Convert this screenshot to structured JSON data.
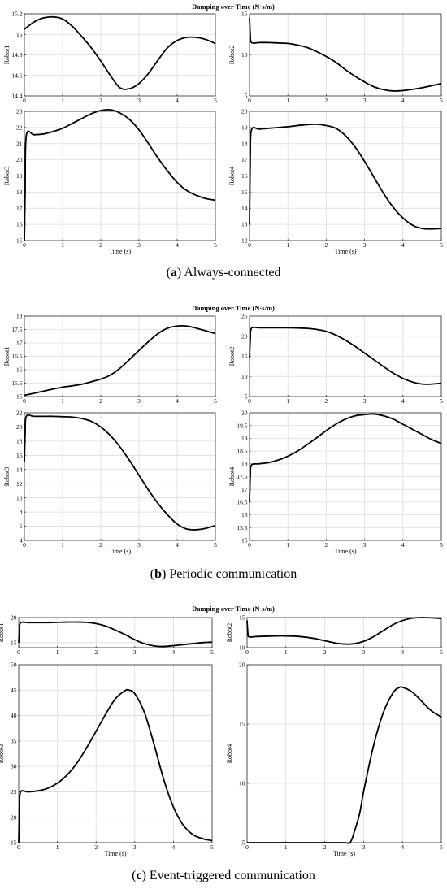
{
  "figures": [
    {
      "title": "Damping over Time (N·s/m)",
      "caption_letter": "(a)",
      "caption_text": "Always-connected"
    },
    {
      "title": "Damping over Time (N·s/m)",
      "caption_letter": "(b)",
      "caption_text": "Periodic communication"
    },
    {
      "title": "Damping over Time (N·s/m)",
      "caption_letter": "(c)",
      "caption_text": "Event-triggered communication"
    }
  ],
  "chart_data": [
    {
      "type": "line",
      "figure": 0,
      "ylabel": "Robot1",
      "xlabel": "",
      "xlim": [
        0,
        5
      ],
      "ylim": [
        14.4,
        15.2
      ],
      "yticks": [
        14.4,
        14.6,
        14.8,
        15,
        15.2
      ],
      "ytick_labels": [
        "14.4",
        "14.6",
        "14.8",
        "15",
        "15.2"
      ],
      "xticks": [
        0,
        1,
        2,
        3,
        4,
        5
      ],
      "x": [
        0,
        0.25,
        0.5,
        0.75,
        1,
        1.25,
        1.5,
        1.75,
        2,
        2.25,
        2.5,
        2.75,
        3,
        3.25,
        3.5,
        3.75,
        4,
        4.25,
        4.5,
        4.75,
        5
      ],
      "y": [
        15.05,
        15.12,
        15.16,
        15.17,
        15.15,
        15.08,
        14.98,
        14.87,
        14.74,
        14.6,
        14.48,
        14.47,
        14.52,
        14.62,
        14.75,
        14.87,
        14.94,
        14.97,
        14.97,
        14.95,
        14.91
      ]
    },
    {
      "type": "line",
      "figure": 0,
      "ylabel": "Robot2",
      "xlabel": "",
      "xlim": [
        0,
        5
      ],
      "ylim": [
        5,
        15
      ],
      "yticks": [
        5,
        10,
        15
      ],
      "ytick_labels": [
        "5",
        "10",
        "15"
      ],
      "xticks": [
        0,
        1,
        2,
        3,
        4,
        5
      ],
      "x": [
        0,
        0.02,
        0.05,
        0.25,
        0.5,
        0.75,
        1,
        1.25,
        1.5,
        1.75,
        2,
        2.25,
        2.5,
        2.75,
        3,
        3.25,
        3.5,
        3.75,
        4,
        4.25,
        4.5,
        4.75,
        5
      ],
      "y": [
        14.5,
        12.5,
        11.5,
        11.5,
        11.5,
        11.45,
        11.4,
        11.2,
        10.9,
        10.4,
        9.8,
        9.1,
        8.2,
        7.4,
        6.7,
        6.1,
        5.75,
        5.6,
        5.65,
        5.8,
        6,
        6.25,
        6.5
      ]
    },
    {
      "type": "line",
      "figure": 0,
      "ylabel": "Robot3",
      "xlabel": "Time (s)",
      "xlim": [
        0,
        5
      ],
      "ylim": [
        15,
        23
      ],
      "yticks": [
        15,
        16,
        17,
        18,
        19,
        20,
        21,
        22,
        23
      ],
      "ytick_labels": [
        "15",
        "16",
        "17",
        "18",
        "19",
        "20",
        "21",
        "22",
        "23"
      ],
      "xticks": [
        0,
        1,
        2,
        3,
        4,
        5
      ],
      "x": [
        0,
        0.02,
        0.05,
        0.25,
        0.5,
        0.75,
        1,
        1.25,
        1.5,
        1.75,
        2,
        2.25,
        2.5,
        2.75,
        3,
        3.25,
        3.5,
        3.75,
        4,
        4.25,
        4.5,
        4.75,
        5
      ],
      "y": [
        15,
        18,
        21.5,
        21.55,
        21.6,
        21.75,
        21.95,
        22.25,
        22.55,
        22.85,
        23.05,
        23.1,
        22.9,
        22.5,
        21.85,
        21,
        20.1,
        19.3,
        18.6,
        18.1,
        17.8,
        17.6,
        17.5
      ]
    },
    {
      "type": "line",
      "figure": 0,
      "ylabel": "Robot4",
      "xlabel": "Time (s)",
      "xlim": [
        0,
        5
      ],
      "ylim": [
        12,
        20
      ],
      "yticks": [
        12,
        13,
        14,
        15,
        16,
        17,
        18,
        19,
        20
      ],
      "ytick_labels": [
        "12",
        "13",
        "14",
        "15",
        "16",
        "17",
        "18",
        "19",
        "20"
      ],
      "xticks": [
        0,
        1,
        2,
        3,
        4,
        5
      ],
      "x": [
        0,
        0.02,
        0.05,
        0.25,
        0.5,
        0.75,
        1,
        1.25,
        1.5,
        1.75,
        2,
        2.25,
        2.5,
        2.75,
        3,
        3.25,
        3.5,
        3.75,
        4,
        4.25,
        4.5,
        4.75,
        5
      ],
      "y": [
        13,
        17,
        18.85,
        18.9,
        18.95,
        19,
        19.05,
        19.12,
        19.18,
        19.2,
        19.12,
        18.95,
        18.5,
        17.8,
        16.9,
        15.9,
        14.9,
        14.05,
        13.4,
        12.95,
        12.75,
        12.72,
        12.75
      ]
    },
    {
      "type": "line",
      "figure": 1,
      "ylabel": "Robot1",
      "xlabel": "",
      "xlim": [
        0,
        5
      ],
      "ylim": [
        15,
        18
      ],
      "yticks": [
        15,
        15.5,
        16,
        16.5,
        17,
        17.5,
        18
      ],
      "ytick_labels": [
        "15",
        "15.5",
        "16",
        "16.5",
        "17",
        "17.5",
        "18"
      ],
      "xticks": [
        0,
        1,
        2,
        3,
        4,
        5
      ],
      "x": [
        0,
        0.25,
        0.5,
        0.75,
        1,
        1.25,
        1.5,
        1.75,
        2,
        2.25,
        2.5,
        2.75,
        3,
        3.25,
        3.5,
        3.75,
        4,
        4.25,
        4.5,
        4.75,
        5
      ],
      "y": [
        15.05,
        15.12,
        15.2,
        15.28,
        15.35,
        15.4,
        15.46,
        15.55,
        15.65,
        15.8,
        16.05,
        16.38,
        16.72,
        17.05,
        17.35,
        17.55,
        17.63,
        17.63,
        17.55,
        17.45,
        17.35
      ]
    },
    {
      "type": "line",
      "figure": 1,
      "ylabel": "Robot2",
      "xlabel": "",
      "xlim": [
        0,
        5
      ],
      "ylim": [
        5,
        25
      ],
      "yticks": [
        5,
        10,
        15,
        20,
        25
      ],
      "ytick_labels": [
        "5",
        "10",
        "15",
        "20",
        "25"
      ],
      "xticks": [
        0,
        1,
        2,
        3,
        4,
        5
      ],
      "x": [
        0,
        0.02,
        0.05,
        0.25,
        0.5,
        0.75,
        1,
        1.25,
        1.5,
        1.75,
        2,
        2.25,
        2.5,
        2.75,
        3,
        3.25,
        3.5,
        3.75,
        4,
        4.25,
        4.5,
        4.75,
        5
      ],
      "y": [
        14.5,
        19,
        22,
        22.1,
        22.1,
        22.1,
        22.1,
        22.05,
        21.95,
        21.7,
        21.2,
        20.3,
        19,
        17.5,
        15.8,
        14.1,
        12.4,
        10.8,
        9.5,
        8.6,
        8.1,
        8.1,
        8.3
      ]
    },
    {
      "type": "line",
      "figure": 1,
      "ylabel": "Robot3",
      "xlabel": "Time (s)",
      "xlim": [
        0,
        5
      ],
      "ylim": [
        4,
        22
      ],
      "yticks": [
        4,
        6,
        8,
        10,
        12,
        14,
        16,
        18,
        20,
        22
      ],
      "ytick_labels": [
        "4",
        "6",
        "8",
        "10",
        "12",
        "14",
        "16",
        "18",
        "20",
        "22"
      ],
      "xticks": [
        0,
        1,
        2,
        3,
        4,
        5
      ],
      "x": [
        0,
        0.02,
        0.05,
        0.25,
        0.5,
        0.75,
        1,
        1.25,
        1.5,
        1.75,
        2,
        2.25,
        2.5,
        2.75,
        3,
        3.25,
        3.5,
        3.75,
        4,
        4.25,
        4.5,
        4.75,
        5
      ],
      "y": [
        15,
        19,
        21.5,
        21.5,
        21.5,
        21.5,
        21.45,
        21.4,
        21.2,
        20.8,
        20,
        18.8,
        17.2,
        15.3,
        13.2,
        11.1,
        9.2,
        7.6,
        6.3,
        5.6,
        5.5,
        5.7,
        6.1
      ]
    },
    {
      "type": "line",
      "figure": 1,
      "ylabel": "Robot4",
      "xlabel": "Time (s)",
      "xlim": [
        0,
        5
      ],
      "ylim": [
        15,
        20
      ],
      "yticks": [
        15,
        15.5,
        16,
        16.5,
        17,
        17.5,
        18,
        18.5,
        19,
        19.5,
        20
      ],
      "ytick_labels": [
        "15",
        "15.5",
        "16",
        "16.5",
        "17",
        "17.5",
        "18",
        "18.5",
        "19",
        "19.5",
        "20"
      ],
      "xticks": [
        0,
        1,
        2,
        3,
        4,
        5
      ],
      "x": [
        0,
        0.02,
        0.05,
        0.25,
        0.5,
        0.75,
        1,
        1.25,
        1.5,
        1.75,
        2,
        2.25,
        2.5,
        2.75,
        3,
        3.25,
        3.5,
        3.75,
        4,
        4.25,
        4.5,
        4.75,
        5
      ],
      "y": [
        16.5,
        17.5,
        17.95,
        18,
        18.05,
        18.15,
        18.3,
        18.5,
        18.75,
        19.02,
        19.3,
        19.55,
        19.75,
        19.88,
        19.93,
        19.95,
        19.88,
        19.75,
        19.55,
        19.35,
        19.15,
        18.95,
        18.8
      ]
    },
    {
      "type": "line",
      "figure": 2,
      "ylabel": "Robot1",
      "xlabel": "",
      "xlim": [
        0,
        5
      ],
      "ylim": [
        14,
        20
      ],
      "yticks": [
        15,
        20
      ],
      "ytick_labels": [
        "15",
        "20"
      ],
      "xticks": [
        0,
        1,
        2,
        3,
        4,
        5
      ],
      "x": [
        0,
        0.02,
        0.05,
        0.25,
        0.5,
        0.75,
        1,
        1.25,
        1.5,
        1.75,
        2,
        2.25,
        2.5,
        2.75,
        3,
        3.25,
        3.5,
        3.75,
        4,
        4.25,
        4.5,
        4.75,
        5
      ],
      "y": [
        15,
        17.5,
        19,
        19,
        19,
        19,
        19.05,
        19.1,
        19.1,
        19.05,
        18.8,
        18.3,
        17.5,
        16.6,
        15.6,
        14.8,
        14.35,
        14.25,
        14.4,
        14.6,
        14.8,
        15,
        15.1
      ]
    },
    {
      "type": "line",
      "figure": 2,
      "ylabel": "Robot2",
      "xlabel": "",
      "xlim": [
        0,
        5
      ],
      "ylim": [
        10,
        15
      ],
      "yticks": [
        10,
        15
      ],
      "ytick_labels": [
        "10",
        "15"
      ],
      "xticks": [
        0,
        1,
        2,
        3,
        4,
        5
      ],
      "x": [
        0,
        0.02,
        0.05,
        0.25,
        0.5,
        0.75,
        1,
        1.25,
        1.5,
        1.75,
        2,
        2.25,
        2.5,
        2.75,
        3,
        3.25,
        3.5,
        3.75,
        4,
        4.25,
        4.5,
        4.75,
        5
      ],
      "y": [
        14.5,
        12.5,
        11.8,
        11.85,
        11.9,
        11.95,
        11.95,
        11.9,
        11.75,
        11.5,
        11.15,
        10.8,
        10.6,
        10.65,
        11.05,
        11.8,
        12.8,
        13.8,
        14.5,
        14.9,
        15,
        14.95,
        14.85
      ]
    },
    {
      "type": "line",
      "figure": 2,
      "ylabel": "Robot3",
      "xlabel": "Time (s)",
      "xlim": [
        0,
        5
      ],
      "ylim": [
        15,
        50
      ],
      "yticks": [
        15,
        20,
        25,
        30,
        35,
        40,
        45,
        50
      ],
      "ytick_labels": [
        "15",
        "20",
        "25",
        "30",
        "35",
        "40",
        "45",
        "50"
      ],
      "xticks": [
        0,
        1,
        2,
        3,
        4,
        5
      ],
      "x": [
        0,
        0.02,
        0.05,
        0.25,
        0.5,
        0.75,
        1,
        1.25,
        1.5,
        1.75,
        2,
        2.25,
        2.5,
        2.75,
        2.85,
        3,
        3.25,
        3.5,
        3.75,
        4,
        4.25,
        4.5,
        4.75,
        5
      ],
      "y": [
        15,
        22,
        25,
        25,
        25.2,
        25.7,
        26.7,
        28.3,
        30.6,
        33.6,
        36.9,
        40.3,
        43.3,
        44.9,
        45,
        44.3,
        40.6,
        34.3,
        27.4,
        22,
        18.5,
        16.6,
        15.8,
        15.4
      ]
    },
    {
      "type": "line",
      "figure": 2,
      "ylabel": "Robot4",
      "xlabel": "Time (s)",
      "xlim": [
        0,
        5
      ],
      "ylim": [
        5,
        20
      ],
      "yticks": [
        5,
        10,
        15,
        20
      ],
      "ytick_labels": [
        "5",
        "10",
        "15",
        "20"
      ],
      "xticks": [
        0,
        1,
        2,
        3,
        4,
        5
      ],
      "x": [
        0,
        0.5,
        1,
        1.5,
        2,
        2.5,
        2.65,
        2.75,
        2.9,
        3,
        3.25,
        3.5,
        3.75,
        3.9,
        4,
        4.25,
        4.5,
        4.75,
        5
      ],
      "y": [
        5,
        5,
        5,
        5,
        5,
        5,
        5,
        5.8,
        7.5,
        9.3,
        13.1,
        15.9,
        17.6,
        18.05,
        18.1,
        17.7,
        16.9,
        16.1,
        15.6
      ]
    }
  ]
}
